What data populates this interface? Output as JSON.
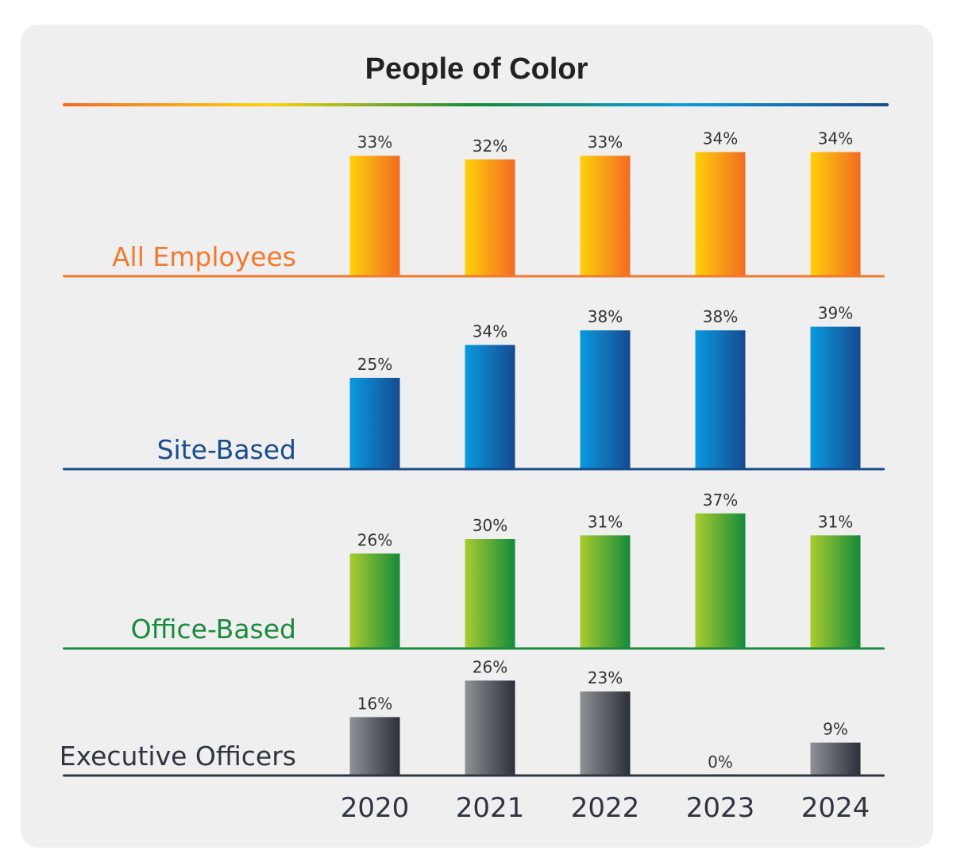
{
  "chart_data": {
    "type": "bar",
    "title": "People of Color",
    "categories": [
      "2020",
      "2021",
      "2022",
      "2023",
      "2024"
    ],
    "value_suffix": "%",
    "panels": [
      {
        "name": "All Employees",
        "values": [
          33,
          32,
          33,
          34,
          34
        ],
        "labels": [
          "33%",
          "32%",
          "33%",
          "34%",
          "34%"
        ],
        "color_light": "#fdd10a",
        "color_dark": "#f26b22",
        "label_color": "#f07a30",
        "axis_color": "#f07a30"
      },
      {
        "name": "Site-Based",
        "values": [
          25,
          34,
          38,
          38,
          39
        ],
        "labels": [
          "25%",
          "34%",
          "38%",
          "38%",
          "39%"
        ],
        "color_light": "#0a9adf",
        "color_dark": "#154a90",
        "label_color": "#1a4d8c",
        "axis_color": "#1a4d8c"
      },
      {
        "name": "Office-Based",
        "values": [
          26,
          30,
          31,
          37,
          31
        ],
        "labels": [
          "26%",
          "30%",
          "31%",
          "37%",
          "31%"
        ],
        "color_light": "#a9cc2e",
        "color_dark": "#148a3c",
        "label_color": "#1b8a3e",
        "axis_color": "#1b8a3e"
      },
      {
        "name": "Executive Officers",
        "values": [
          16,
          26,
          23,
          0,
          9
        ],
        "labels": [
          "16%",
          "26%",
          "23%",
          "0%",
          "9%"
        ],
        "color_light": "#8e9296",
        "color_dark": "#2b2f38",
        "label_color": "#2e3440",
        "axis_color": "#2e3440"
      }
    ],
    "title_rule_colors": [
      "#f26b22",
      "#fdd10a",
      "#148a3c",
      "#0a9adf",
      "#1a4d8c"
    ],
    "grid": false,
    "legend": "none"
  }
}
